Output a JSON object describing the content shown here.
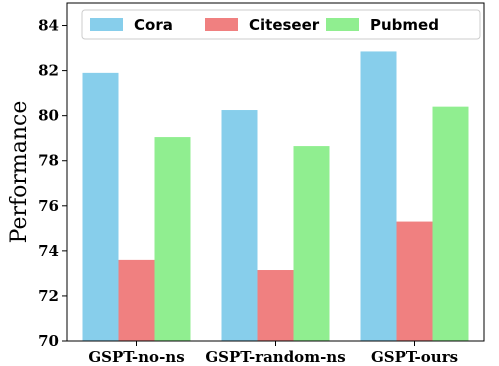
{
  "chart_data": {
    "type": "bar",
    "title": "",
    "xlabel": "",
    "ylabel": "Performance",
    "categories": [
      "GSPT-no-ns",
      "GSPT-random-ns",
      "GSPT-ours"
    ],
    "series": [
      {
        "name": "Cora",
        "color": "#87CEEB",
        "values": [
          81.9,
          80.25,
          82.85
        ]
      },
      {
        "name": "Citeseer",
        "color": "#F08080",
        "values": [
          73.6,
          73.15,
          75.3
        ]
      },
      {
        "name": "Pubmed",
        "color": "#90EE90",
        "values": [
          79.05,
          78.65,
          80.4
        ]
      }
    ],
    "ylim": [
      70,
      85
    ],
    "yticks": [
      "70",
      "72",
      "74",
      "76",
      "78",
      "80",
      "82",
      "84"
    ],
    "grid": false,
    "legend_position": "top"
  }
}
